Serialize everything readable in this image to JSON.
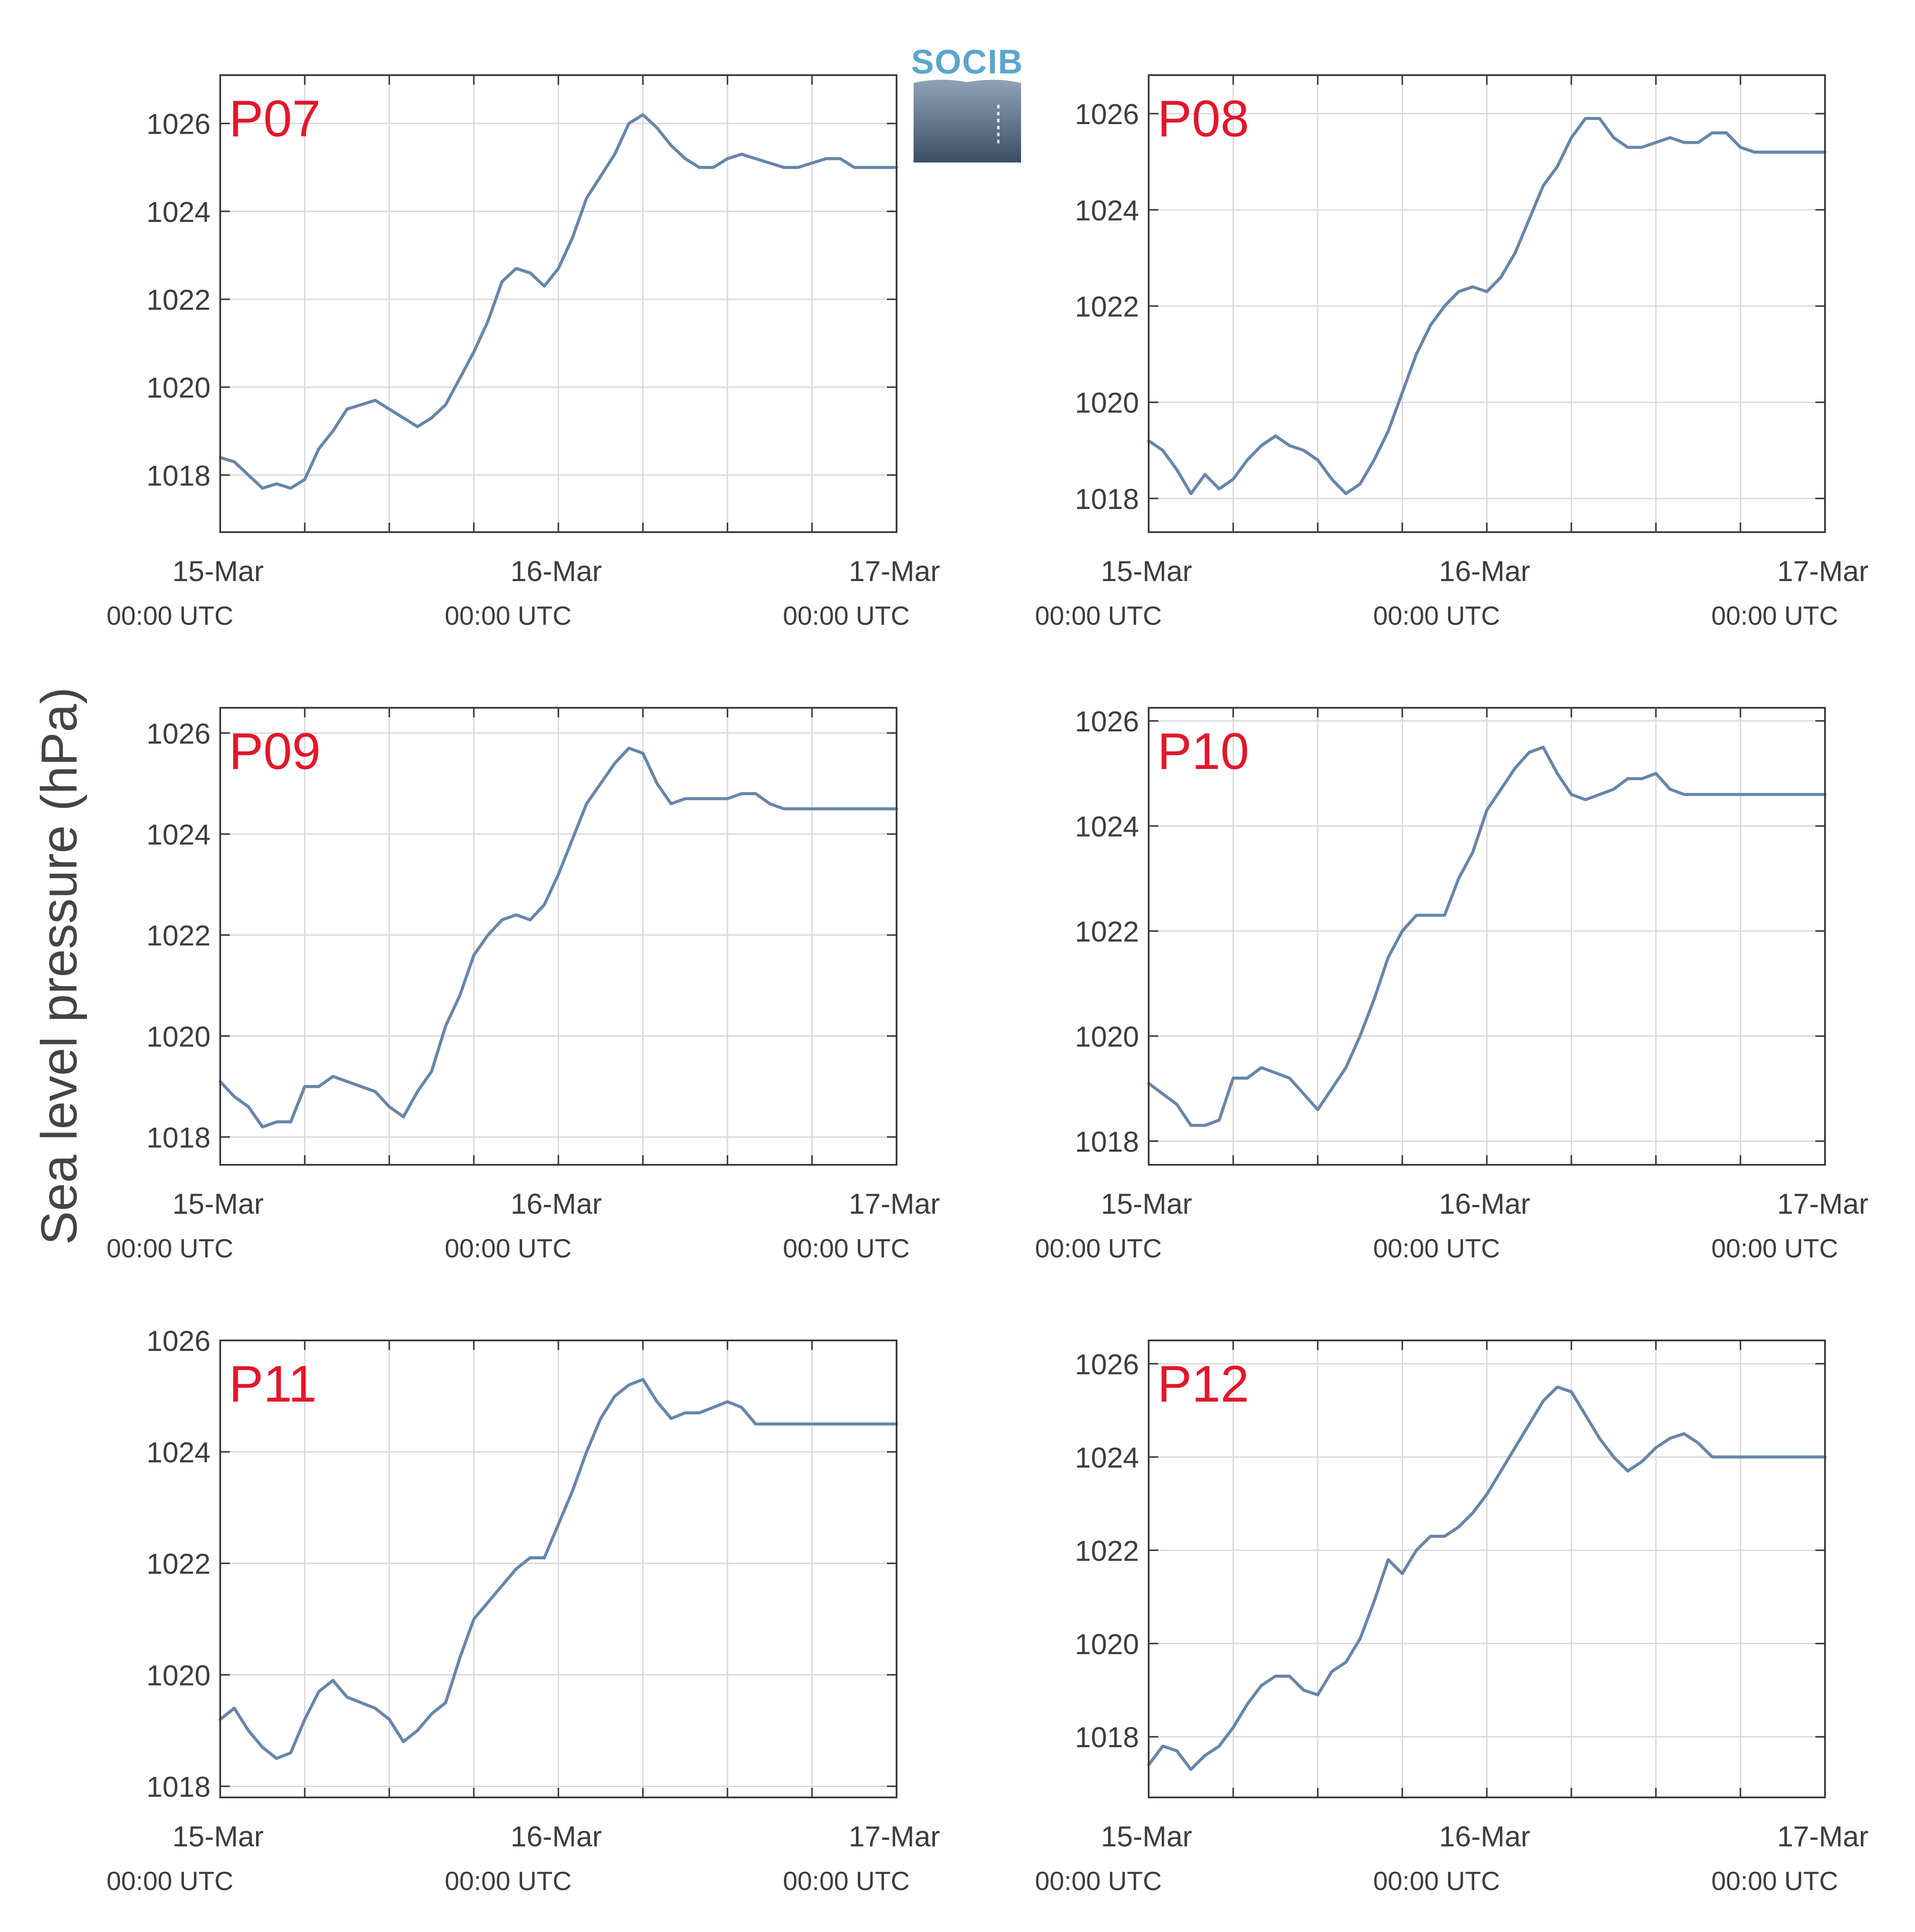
{
  "figure": {
    "ylabel": "Sea level pressure (hPa)",
    "logo_text": "SOCIB",
    "x_tick_labels": [
      "15-Mar",
      "16-Mar",
      "17-Mar"
    ],
    "x_tick_sub": "00:00 UTC",
    "colors": {
      "series": "#6786a8",
      "panel_title": "#e0182b",
      "grid": "#d9d9d9",
      "axes": "#3a3a3a"
    }
  },
  "chart_data": [
    {
      "type": "line",
      "title": "P07",
      "ylim": [
        1016.7,
        1027.1
      ],
      "yticks": [
        1018,
        1020,
        1022,
        1024,
        1026
      ],
      "xlim": [
        0,
        48
      ],
      "grid": true,
      "x": [
        0,
        1,
        2,
        3,
        4,
        5,
        6,
        7,
        8,
        9,
        10,
        11,
        12,
        13,
        14,
        15,
        16,
        17,
        18,
        19,
        20,
        21,
        22,
        23,
        24,
        25,
        26,
        27,
        28,
        29,
        30,
        31,
        32,
        33,
        34,
        35,
        36,
        37,
        38,
        39,
        40,
        41,
        42,
        43,
        44,
        45,
        46,
        47,
        48
      ],
      "y": [
        1018.4,
        1018.3,
        1018.0,
        1017.7,
        1017.8,
        1017.7,
        1017.9,
        1018.6,
        1019.0,
        1019.5,
        1019.6,
        1019.7,
        1019.5,
        1019.3,
        1019.1,
        1019.3,
        1019.6,
        1020.2,
        1020.8,
        1021.5,
        1022.4,
        1022.7,
        1022.6,
        1022.3,
        1022.7,
        1023.4,
        1024.3,
        1024.8,
        1025.3,
        1026.0,
        1026.2,
        1025.9,
        1025.5,
        1025.2,
        1025.0,
        1025.0,
        1025.2,
        1025.3,
        1025.2,
        1025.1,
        1025.0,
        1025.0,
        1025.1,
        1025.2,
        1025.2,
        1025.0,
        1025.0,
        1025.0,
        1025.0
      ]
    },
    {
      "type": "line",
      "title": "P08",
      "ylim": [
        1017.3,
        1026.8
      ],
      "yticks": [
        1018,
        1020,
        1022,
        1024,
        1026
      ],
      "xlim": [
        0,
        48
      ],
      "grid": true,
      "x": [
        0,
        1,
        2,
        3,
        4,
        5,
        6,
        7,
        8,
        9,
        10,
        11,
        12,
        13,
        14,
        15,
        16,
        17,
        18,
        19,
        20,
        21,
        22,
        23,
        24,
        25,
        26,
        27,
        28,
        29,
        30,
        31,
        32,
        33,
        34,
        35,
        36,
        37,
        38,
        39,
        40,
        41,
        42,
        43,
        44,
        45,
        46,
        47,
        48
      ],
      "y": [
        1019.2,
        1019.0,
        1018.6,
        1018.1,
        1018.5,
        1018.2,
        1018.4,
        1018.8,
        1019.1,
        1019.3,
        1019.1,
        1019.0,
        1018.8,
        1018.4,
        1018.1,
        1018.3,
        1018.8,
        1019.4,
        1020.2,
        1021.0,
        1021.6,
        1022.0,
        1022.3,
        1022.4,
        1022.3,
        1022.6,
        1023.1,
        1023.8,
        1024.5,
        1024.9,
        1025.5,
        1025.9,
        1025.9,
        1025.5,
        1025.3,
        1025.3,
        1025.4,
        1025.5,
        1025.4,
        1025.4,
        1025.6,
        1025.6,
        1025.3,
        1025.2,
        1025.2,
        1025.2,
        1025.2,
        1025.2,
        1025.2
      ]
    },
    {
      "type": "line",
      "title": "P09",
      "ylim": [
        1017.45,
        1026.5
      ],
      "yticks": [
        1018,
        1020,
        1022,
        1024,
        1026
      ],
      "xlim": [
        0,
        48
      ],
      "grid": true,
      "x": [
        0,
        1,
        2,
        3,
        4,
        5,
        6,
        7,
        8,
        9,
        10,
        11,
        12,
        13,
        14,
        15,
        16,
        17,
        18,
        19,
        20,
        21,
        22,
        23,
        24,
        25,
        26,
        27,
        28,
        29,
        30,
        31,
        32,
        33,
        34,
        35,
        36,
        37,
        38,
        39,
        40,
        41,
        42,
        43,
        44,
        45,
        46,
        47,
        48
      ],
      "y": [
        1019.1,
        1018.8,
        1018.6,
        1018.2,
        1018.3,
        1018.3,
        1019.0,
        1019.0,
        1019.2,
        1019.1,
        1019.0,
        1018.9,
        1018.6,
        1018.4,
        1018.9,
        1019.3,
        1020.2,
        1020.8,
        1021.6,
        1022.0,
        1022.3,
        1022.4,
        1022.3,
        1022.6,
        1023.2,
        1023.9,
        1024.6,
        1025.0,
        1025.4,
        1025.7,
        1025.6,
        1025.0,
        1024.6,
        1024.7,
        1024.7,
        1024.7,
        1024.7,
        1024.8,
        1024.8,
        1024.6,
        1024.5,
        1024.5,
        1024.5,
        1024.5,
        1024.5,
        1024.5,
        1024.5,
        1024.5,
        1024.5
      ]
    },
    {
      "type": "line",
      "title": "P10",
      "ylim": [
        1017.55,
        1026.25
      ],
      "yticks": [
        1018,
        1020,
        1022,
        1024,
        1026
      ],
      "xlim": [
        0,
        48
      ],
      "grid": true,
      "x": [
        0,
        1,
        2,
        3,
        4,
        5,
        6,
        7,
        8,
        9,
        10,
        11,
        12,
        13,
        14,
        15,
        16,
        17,
        18,
        19,
        20,
        21,
        22,
        23,
        24,
        25,
        26,
        27,
        28,
        29,
        30,
        31,
        32,
        33,
        34,
        35,
        36,
        37,
        38,
        39,
        40,
        41,
        42,
        43,
        44,
        45,
        46,
        47,
        48
      ],
      "y": [
        1019.1,
        1018.9,
        1018.7,
        1018.3,
        1018.3,
        1018.4,
        1019.2,
        1019.2,
        1019.4,
        1019.3,
        1019.2,
        1018.9,
        1018.6,
        1019.0,
        1019.4,
        1020.0,
        1020.7,
        1021.5,
        1022.0,
        1022.3,
        1022.3,
        1022.3,
        1023.0,
        1023.5,
        1024.3,
        1024.7,
        1025.1,
        1025.4,
        1025.5,
        1025.0,
        1024.6,
        1024.5,
        1024.6,
        1024.7,
        1024.9,
        1024.9,
        1025.0,
        1024.7,
        1024.6,
        1024.6,
        1024.6,
        1024.6,
        1024.6,
        1024.6,
        1024.6,
        1024.6,
        1024.6,
        1024.6,
        1024.6
      ]
    },
    {
      "type": "line",
      "title": "P11",
      "ylim": [
        1017.8,
        1026.0
      ],
      "yticks": [
        1018,
        1020,
        1022,
        1024,
        1026
      ],
      "xlim": [
        0,
        48
      ],
      "grid": true,
      "x": [
        0,
        1,
        2,
        3,
        4,
        5,
        6,
        7,
        8,
        9,
        10,
        11,
        12,
        13,
        14,
        15,
        16,
        17,
        18,
        19,
        20,
        21,
        22,
        23,
        24,
        25,
        26,
        27,
        28,
        29,
        30,
        31,
        32,
        33,
        34,
        35,
        36,
        37,
        38,
        39,
        40,
        41,
        42,
        43,
        44,
        45,
        46,
        47,
        48
      ],
      "y": [
        1019.2,
        1019.4,
        1019.0,
        1018.7,
        1018.5,
        1018.6,
        1019.2,
        1019.7,
        1019.9,
        1019.6,
        1019.5,
        1019.4,
        1019.2,
        1018.8,
        1019.0,
        1019.3,
        1019.5,
        1020.3,
        1021.0,
        1021.3,
        1021.6,
        1021.9,
        1022.1,
        1022.1,
        1022.7,
        1023.3,
        1024.0,
        1024.6,
        1025.0,
        1025.2,
        1025.3,
        1024.9,
        1024.6,
        1024.7,
        1024.7,
        1024.8,
        1024.9,
        1024.8,
        1024.5,
        1024.5,
        1024.5,
        1024.5,
        1024.5,
        1024.5,
        1024.5,
        1024.5,
        1024.5,
        1024.5,
        1024.5
      ]
    },
    {
      "type": "line",
      "title": "P12",
      "ylim": [
        1016.7,
        1026.5
      ],
      "yticks": [
        1018,
        1020,
        1022,
        1024,
        1026
      ],
      "xlim": [
        0,
        48
      ],
      "grid": true,
      "x": [
        0,
        1,
        2,
        3,
        4,
        5,
        6,
        7,
        8,
        9,
        10,
        11,
        12,
        13,
        14,
        15,
        16,
        17,
        18,
        19,
        20,
        21,
        22,
        23,
        24,
        25,
        26,
        27,
        28,
        29,
        30,
        31,
        32,
        33,
        34,
        35,
        36,
        37,
        38,
        39,
        40,
        41,
        42,
        43,
        44,
        45,
        46,
        47,
        48
      ],
      "y": [
        1017.4,
        1017.8,
        1017.7,
        1017.3,
        1017.6,
        1017.8,
        1018.2,
        1018.7,
        1019.1,
        1019.3,
        1019.3,
        1019.0,
        1018.9,
        1019.4,
        1019.6,
        1020.1,
        1020.9,
        1021.8,
        1021.5,
        1022.0,
        1022.3,
        1022.3,
        1022.5,
        1022.8,
        1023.2,
        1023.7,
        1024.2,
        1024.7,
        1025.2,
        1025.5,
        1025.4,
        1024.9,
        1024.4,
        1024.0,
        1023.7,
        1023.9,
        1024.2,
        1024.4,
        1024.5,
        1024.3,
        1024.0,
        1024.0,
        1024.0,
        1024.0,
        1024.0,
        1024.0,
        1024.0,
        1024.0,
        1024.0
      ]
    }
  ]
}
